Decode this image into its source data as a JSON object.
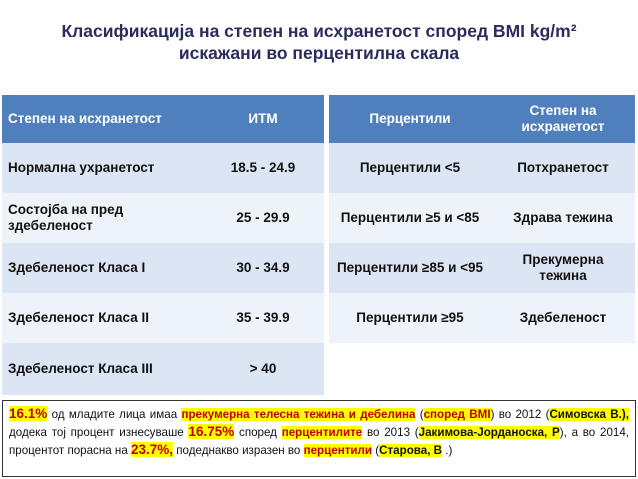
{
  "title": {
    "line1": "Класификација на степен на исхранетост според BMI kg/m²",
    "line2": "искажани во перцентилна скала"
  },
  "left_table": {
    "header": {
      "category": "Степен на исхранетост",
      "value": "ИТМ"
    },
    "rows": [
      {
        "category": "Нормална ухранетост",
        "value": "18.5 - 24.9"
      },
      {
        "category": "Состојба на пред здебеленост",
        "value": "25 - 29.9"
      },
      {
        "category": "Здебеленост Класа I",
        "value": "30 - 34.9"
      },
      {
        "category": "Здебеленост Класа II",
        "value": "35 - 39.9"
      },
      {
        "category": "Здебеленост Класа III",
        "value": "> 40"
      }
    ]
  },
  "right_table": {
    "header": {
      "percentile": "Перцентили",
      "category": "Степен на исхранетост"
    },
    "rows": [
      {
        "percentile": "Перцентили <5",
        "category": "Потхранетост"
      },
      {
        "percentile": "Перцентили ≥5 и <85",
        "category": "Здрава тежина"
      },
      {
        "percentile": "Перцентили ≥85 и <95",
        "category": "Прекумерна тежина"
      },
      {
        "percentile": "Перцентили ≥95",
        "category": "Здебеленост"
      }
    ]
  },
  "note": {
    "p1": "16.1%",
    "t1": " од младите лица имаа ",
    "p2": "прекумерна телесна тежина и дебелина",
    "t2": " (",
    "p3": "според BMI",
    "t3": ") во 2012 (",
    "p4": "Симовска В.),",
    "t4": " додека тој процент изнесуваше ",
    "p5": "16.75%",
    "t5": " според ",
    "p6": "перцентилите",
    "t6": " во 2013 (",
    "p7": "Јакимова-Јорданоска, Р",
    "t7": "), а во 2014, процентот порасна на ",
    "p8": "23.7%,",
    "t8": " подеднакво изразен во ",
    "p9": "перцентили",
    "t9": " (",
    "p10": "Старова, В",
    "t10": " .)"
  }
}
